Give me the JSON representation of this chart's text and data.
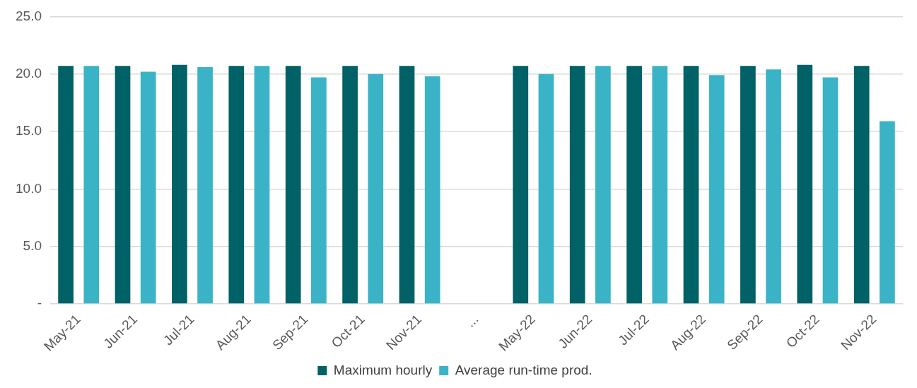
{
  "chart_data": {
    "type": "bar",
    "categories": [
      "May-21",
      "Jun-21",
      "Jul-21",
      "Aug-21",
      "Sep-21",
      "Oct-21",
      "Nov-21",
      "...",
      "May-22",
      "Jun-22",
      "Jul-22",
      "Aug-22",
      "Sep-22",
      "Oct-22",
      "Nov-22"
    ],
    "series": [
      {
        "name": "Maximum hourly",
        "color": "#006166",
        "values": [
          20.7,
          20.7,
          20.8,
          20.7,
          20.7,
          20.7,
          20.7,
          null,
          20.7,
          20.7,
          20.7,
          20.7,
          20.7,
          20.8,
          20.7
        ]
      },
      {
        "name": "Average run-time prod.",
        "color": "#3bb3c6",
        "values": [
          20.7,
          20.2,
          20.6,
          20.7,
          19.7,
          20.0,
          19.8,
          null,
          20.0,
          20.7,
          20.7,
          19.9,
          20.4,
          19.7,
          15.9
        ]
      }
    ],
    "ylim": [
      0,
      25
    ],
    "yticks": [
      {
        "value": 0,
        "label": "-"
      },
      {
        "value": 5,
        "label": "5.0"
      },
      {
        "value": 10,
        "label": "10.0"
      },
      {
        "value": 15,
        "label": "15.0"
      },
      {
        "value": 20,
        "label": "20.0"
      },
      {
        "value": 25,
        "label": "25.0"
      }
    ],
    "grid": "y",
    "legend": "bottom"
  }
}
